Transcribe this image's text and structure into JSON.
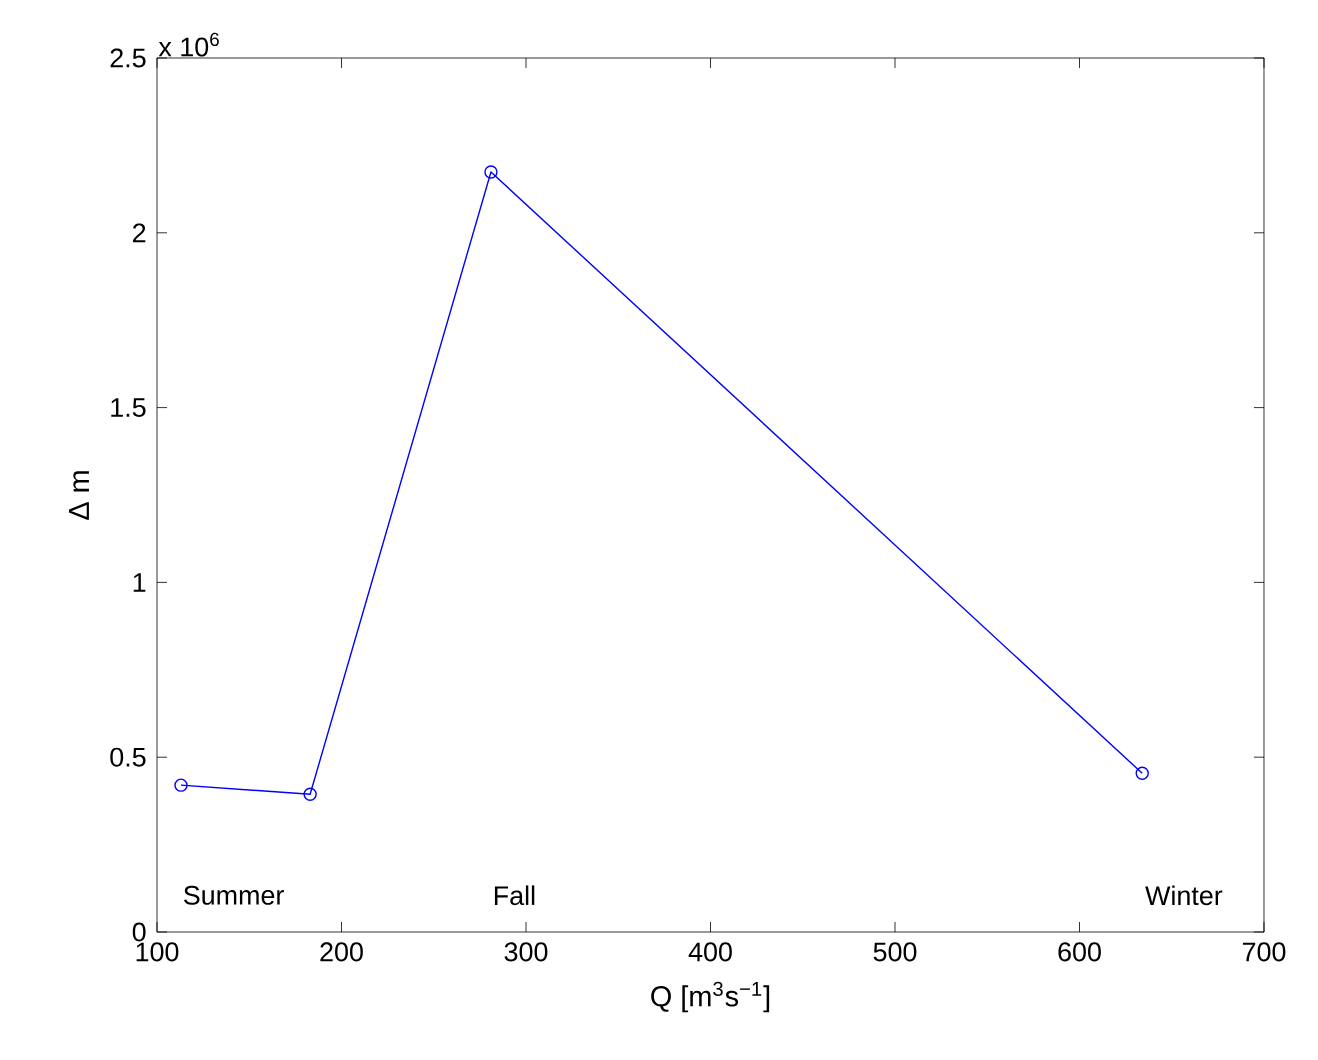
{
  "chart_data": {
    "type": "line",
    "xlabel": "Q [m$^{3}$s$^{−1}$]",
    "ylabel": "Δ m",
    "annotations": [
      "x 10$^{6}$",
      "Summer",
      "Fall",
      "Winter"
    ],
    "x": [
      113,
      183,
      281,
      634
    ],
    "series": [
      {
        "color": "#0000ff",
        "values": [
          0.42,
          0.394,
          2.174,
          0.454
        ]
      }
    ],
    "xlim": [
      100,
      700
    ],
    "xticks": [
      100,
      200,
      300,
      400,
      500,
      600,
      700
    ],
    "ylim": [
      0,
      2.5
    ],
    "yticks": [
      0,
      0.5,
      1,
      1.5,
      2,
      2.5
    ],
    "marker": "circle",
    "line_style": "solid",
    "grid": false
  }
}
